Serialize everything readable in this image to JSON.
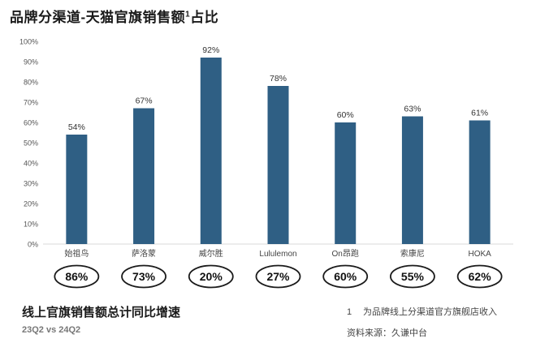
{
  "title_main": "品牌分渠道-天猫官旗销售额",
  "title_sup": "1",
  "title_tail": "占比",
  "colors": {
    "bar": "#2f5f84",
    "axis_text": "#555555",
    "ellipse_stroke": "#1a1a1a"
  },
  "chart_data": {
    "type": "bar",
    "title": "品牌分渠道-天猫官旗销售额1占比",
    "categories": [
      "始祖鸟",
      "萨洛蒙",
      "威尔胜",
      "Lululemon",
      "On昂跑",
      "索康尼",
      "HOKA"
    ],
    "values": [
      54,
      67,
      92,
      78,
      60,
      63,
      61
    ],
    "value_labels": [
      "54%",
      "67%",
      "92%",
      "78%",
      "60%",
      "63%",
      "61%"
    ],
    "ylim": [
      0,
      100
    ],
    "yticks": [
      "0%",
      "10%",
      "20%",
      "30%",
      "40%",
      "50%",
      "60%",
      "70%",
      "80%",
      "90%",
      "100%"
    ],
    "xlabel": "",
    "ylabel": "",
    "grid": false
  },
  "growth": {
    "title": "线上官旗销售额总计同比增速",
    "subtitle": "23Q2 vs 24Q2",
    "values": [
      "86%",
      "73%",
      "20%",
      "27%",
      "60%",
      "55%",
      "62%"
    ]
  },
  "footnote": {
    "number": "1",
    "text": "为品牌线上分渠道官方旗舰店收入"
  },
  "source": "资料来源：久谦中台"
}
